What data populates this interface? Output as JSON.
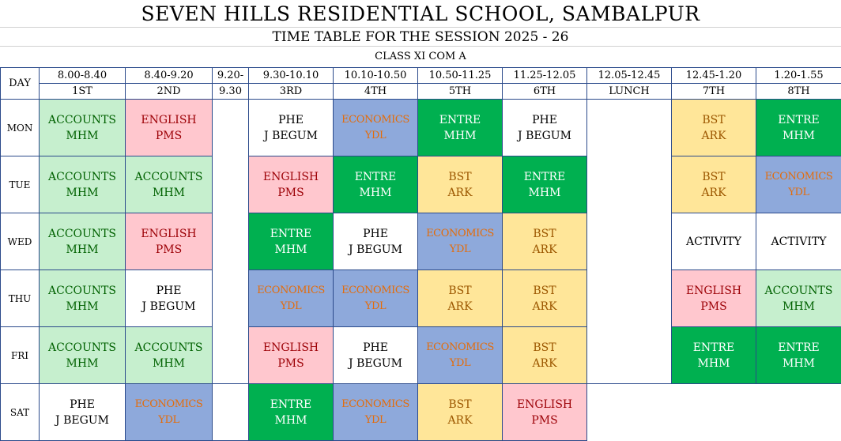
{
  "school": "SEVEN HILLS RESIDENTIAL SCHOOL, SAMBALPUR",
  "session": "TIME TABLE FOR THE SESSION 2025 - 26",
  "class": "CLASS XI COM A",
  "day_header": "DAY",
  "times": [
    "8.00-8.40",
    "8.40-9.20",
    "9.20-",
    "9.30-10.10",
    "10.10-10.50",
    "10.50-11.25",
    "11.25-12.05",
    "12.05-12.45",
    "12.45-1.20",
    "1.20-1.55"
  ],
  "periods": [
    "1ST",
    "2ND",
    "9.30",
    "3RD",
    "4TH",
    "5TH",
    "6TH",
    "LUNCH",
    "7TH",
    "8TH"
  ],
  "days": [
    {
      "name": "MON",
      "cells": [
        {
          "s": "ACCOUNTS",
          "t": "MHM",
          "c": "acc"
        },
        {
          "s": "ENGLISH",
          "t": "PMS",
          "c": "eng"
        },
        null,
        {
          "s": "PHE",
          "t": "J BEGUM",
          "c": "phe"
        },
        {
          "s": "ECONOMICS",
          "t": "YDL",
          "c": "eco"
        },
        {
          "s": "ENTRE",
          "t": "MHM",
          "c": "ent"
        },
        {
          "s": "PHE",
          "t": "J BEGUM",
          "c": "phe"
        },
        null,
        {
          "s": "BST",
          "t": "ARK",
          "c": "bst"
        },
        {
          "s": "ENTRE",
          "t": "MHM",
          "c": "ent"
        }
      ]
    },
    {
      "name": "TUE",
      "cells": [
        {
          "s": "ACCOUNTS",
          "t": "MHM",
          "c": "acc"
        },
        {
          "s": "ACCOUNTS",
          "t": "MHM",
          "c": "acc"
        },
        null,
        {
          "s": "ENGLISH",
          "t": "PMS",
          "c": "eng"
        },
        {
          "s": "ENTRE",
          "t": "MHM",
          "c": "ent"
        },
        {
          "s": "BST",
          "t": "ARK",
          "c": "bst"
        },
        {
          "s": "ENTRE",
          "t": "MHM",
          "c": "ent"
        },
        null,
        {
          "s": "BST",
          "t": "ARK",
          "c": "bst"
        },
        {
          "s": "ECONOMICS",
          "t": "YDL",
          "c": "eco"
        }
      ]
    },
    {
      "name": "WED",
      "cells": [
        {
          "s": "ACCOUNTS",
          "t": "MHM",
          "c": "acc"
        },
        {
          "s": "ENGLISH",
          "t": "PMS",
          "c": "eng"
        },
        null,
        {
          "s": "ENTRE",
          "t": "MHM",
          "c": "ent"
        },
        {
          "s": "PHE",
          "t": "J BEGUM",
          "c": "phe"
        },
        {
          "s": "ECONOMICS",
          "t": "YDL",
          "c": "eco"
        },
        {
          "s": "BST",
          "t": "ARK",
          "c": "bst"
        },
        null,
        {
          "s": "ACTIVITY",
          "t": "",
          "c": "act"
        },
        {
          "s": "ACTIVITY",
          "t": "",
          "c": "act"
        }
      ]
    },
    {
      "name": "THU",
      "cells": [
        {
          "s": "ACCOUNTS",
          "t": "MHM",
          "c": "acc"
        },
        {
          "s": "PHE",
          "t": "J BEGUM",
          "c": "phe"
        },
        null,
        {
          "s": "ECONOMICS",
          "t": "YDL",
          "c": "eco"
        },
        {
          "s": "ECONOMICS",
          "t": "YDL",
          "c": "eco"
        },
        {
          "s": "BST",
          "t": "ARK",
          "c": "bst"
        },
        {
          "s": "BST",
          "t": "ARK",
          "c": "bst"
        },
        null,
        {
          "s": "ENGLISH",
          "t": "PMS",
          "c": "eng"
        },
        {
          "s": "ACCOUNTS",
          "t": "MHM",
          "c": "acc"
        }
      ]
    },
    {
      "name": "FRI",
      "cells": [
        {
          "s": "ACCOUNTS",
          "t": "MHM",
          "c": "acc"
        },
        {
          "s": "ACCOUNTS",
          "t": "MHM",
          "c": "acc"
        },
        null,
        {
          "s": "ENGLISH",
          "t": "PMS",
          "c": "eng"
        },
        {
          "s": "PHE",
          "t": "J BEGUM",
          "c": "phe"
        },
        {
          "s": "ECONOMICS",
          "t": "YDL",
          "c": "eco"
        },
        {
          "s": "BST",
          "t": "ARK",
          "c": "bst"
        },
        null,
        {
          "s": "ENTRE",
          "t": "MHM",
          "c": "ent"
        },
        {
          "s": "ENTRE",
          "t": "MHM",
          "c": "ent"
        }
      ]
    },
    {
      "name": "SAT",
      "cells": [
        {
          "s": "PHE",
          "t": "J BEGUM",
          "c": "phe"
        },
        {
          "s": "ECONOMICS",
          "t": "YDL",
          "c": "eco"
        },
        null,
        {
          "s": "ENTRE",
          "t": "MHM",
          "c": "ent"
        },
        {
          "s": "ECONOMICS",
          "t": "YDL",
          "c": "eco"
        },
        {
          "s": "BST",
          "t": "ARK",
          "c": "bst"
        },
        {
          "s": "ENGLISH",
          "t": "PMS",
          "c": "eng"
        },
        null,
        null,
        null
      ]
    }
  ],
  "colors": {
    "accounts": "#c6efce",
    "english": "#ffc7ce",
    "economics": "#8ea9db",
    "entre": "#00b050",
    "bst": "#ffe699",
    "grid": "#2b4a8b"
  }
}
